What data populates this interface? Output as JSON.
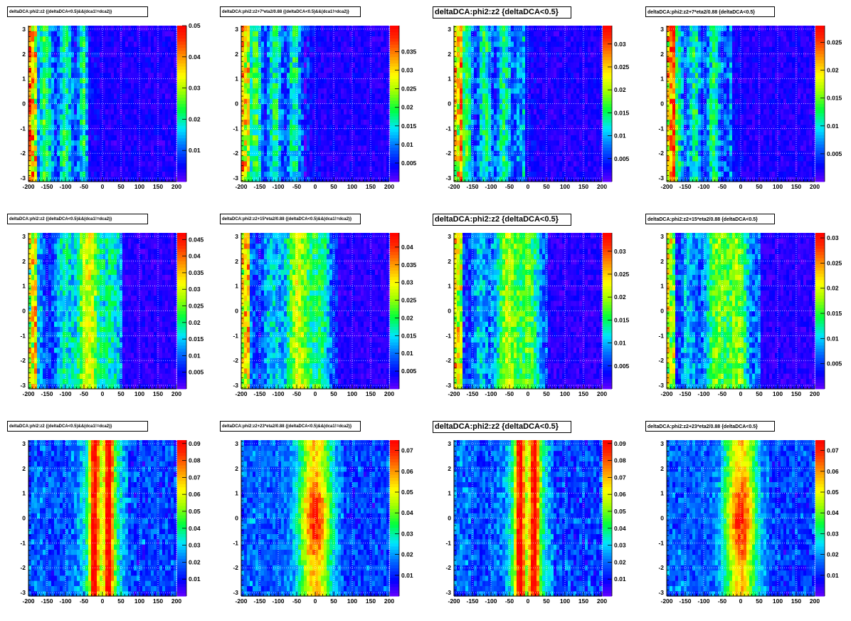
{
  "figure": {
    "layout": "3 rows x 4 columns",
    "colormap": "rainbow (purple-blue-cyan-green-yellow-orange-red)",
    "grid": true
  },
  "chart_data": [
    {
      "type": "heatmap",
      "title": "deltaDCA:phi2:z2 {(deltaDCA<0.5)&&(dca1!=dca2)}",
      "x_ticks": [
        "-200",
        "-150",
        "-100",
        "-50",
        "0",
        "50",
        "100",
        "150",
        "200"
      ],
      "y_ticks": [
        "3",
        "2",
        "1",
        "0",
        "-1",
        "-2",
        "-3"
      ],
      "xlim": [
        -200,
        200
      ],
      "ylim": [
        -3.14,
        3.14
      ],
      "z_ticks": [
        "0.05",
        "0.04",
        "0.03",
        "0.02",
        "0.01"
      ],
      "zmax": 0.05,
      "pattern": "offset_neg",
      "band_right": -35,
      "base": 0.005,
      "hot_left_edge": true
    },
    {
      "type": "heatmap",
      "title": "deltaDCA:phi2:z2+7*eta2/0.88 {(deltaDCA<0.5)&&(dca1!=dca2)}",
      "x_ticks": [
        "-200",
        "-150",
        "-100",
        "-50",
        "0",
        "50",
        "100",
        "150",
        "200"
      ],
      "y_ticks": [
        "3",
        "2",
        "1",
        "0",
        "-1",
        "-2",
        "-3"
      ],
      "xlim": [
        -200,
        200
      ],
      "ylim": [
        -3.14,
        3.14
      ],
      "z_ticks": [
        "0.035",
        "0.03",
        "0.025",
        "0.02",
        "0.015",
        "0.01",
        "0.005"
      ],
      "zmax": 0.042,
      "pattern": "offset_neg",
      "band_right": -15,
      "base": 0.004,
      "hot_left_edge": true
    },
    {
      "type": "heatmap",
      "title": "deltaDCA:phi2:z2 {deltaDCA<0.5}",
      "x_ticks": [
        "-200",
        "-150",
        "-100",
        "-50",
        "0",
        "50",
        "100",
        "150",
        "200"
      ],
      "y_ticks": [
        "3",
        "2",
        "1",
        "0",
        "-1",
        "-2",
        "-3"
      ],
      "xlim": [
        -200,
        200
      ],
      "ylim": [
        -3.14,
        3.14
      ],
      "z_ticks": [
        "0.03",
        "0.025",
        "0.02",
        "0.015",
        "0.01",
        "0.005"
      ],
      "zmax": 0.034,
      "pattern": "offset_neg",
      "band_right": -5,
      "base": 0.001,
      "hot_left_edge": true
    },
    {
      "type": "heatmap",
      "title": "deltaDCA:phi2:z2+7*eta2/0.88 {deltaDCA<0.5}",
      "x_ticks": [
        "-200",
        "-150",
        "-100",
        "-50",
        "0",
        "50",
        "100",
        "150",
        "200"
      ],
      "y_ticks": [
        "3",
        "2",
        "1",
        "0",
        "-1",
        "-2",
        "-3"
      ],
      "xlim": [
        -200,
        200
      ],
      "ylim": [
        -3.14,
        3.14
      ],
      "z_ticks": [
        "0.025",
        "0.02",
        "0.015",
        "0.01",
        "0.005"
      ],
      "zmax": 0.028,
      "pattern": "offset_neg",
      "band_right": -25,
      "base": 0.001,
      "hot_left_edge": true
    },
    {
      "type": "heatmap",
      "title": "deltaDCA:phi2:z2 {(deltaDCA<0.5)&&(dca1!=dca2)}",
      "x_ticks": [
        "-200",
        "-150",
        "-100",
        "-50",
        "0",
        "50",
        "100",
        "150",
        "200"
      ],
      "y_ticks": [
        "3",
        "2",
        "1",
        "0",
        "-1",
        "-2",
        "-3"
      ],
      "xlim": [
        -200,
        200
      ],
      "ylim": [
        -3.14,
        3.14
      ],
      "z_ticks": [
        "0.045",
        "0.04",
        "0.035",
        "0.03",
        "0.025",
        "0.02",
        "0.015",
        "0.01",
        "0.005"
      ],
      "zmax": 0.047,
      "pattern": "broad",
      "band_right": 55,
      "base": 0.002,
      "hot_left_edge": true
    },
    {
      "type": "heatmap",
      "title": "deltaDCA:phi2:z2+15*eta2/0.88 {(deltaDCA<0.5)&&(dca1!=dca2)}",
      "x_ticks": [
        "-200",
        "-150",
        "-100",
        "-50",
        "0",
        "50",
        "100",
        "150",
        "200"
      ],
      "y_ticks": [
        "3",
        "2",
        "1",
        "0",
        "-1",
        "-2",
        "-3"
      ],
      "xlim": [
        -200,
        200
      ],
      "ylim": [
        -3.14,
        3.14
      ],
      "z_ticks": [
        "0.04",
        "0.035",
        "0.03",
        "0.025",
        "0.02",
        "0.015",
        "0.01",
        "0.005"
      ],
      "zmax": 0.044,
      "pattern": "broad",
      "band_right": 65,
      "base": 0.004,
      "hot_left_edge": true
    },
    {
      "type": "heatmap",
      "title": "deltaDCA:phi2:z2 {deltaDCA<0.5}",
      "x_ticks": [
        "-200",
        "-150",
        "-100",
        "-50",
        "0",
        "50",
        "100",
        "150",
        "200"
      ],
      "y_ticks": [
        "3",
        "2",
        "1",
        "0",
        "-1",
        "-2",
        "-3"
      ],
      "xlim": [
        -200,
        200
      ],
      "ylim": [
        -3.14,
        3.14
      ],
      "z_ticks": [
        "0.03",
        "0.025",
        "0.02",
        "0.015",
        "0.01",
        "0.005"
      ],
      "zmax": 0.034,
      "pattern": "broad",
      "band_right": 55,
      "base": 0.001,
      "hot_left_edge": true
    },
    {
      "type": "heatmap",
      "title": "deltaDCA:phi2:z2+15*eta2/0.88 {deltaDCA<0.5}",
      "x_ticks": [
        "-200",
        "-150",
        "-100",
        "-50",
        "0",
        "50",
        "100",
        "150",
        "200"
      ],
      "y_ticks": [
        "3",
        "2",
        "1",
        "0",
        "-1",
        "-2",
        "-3"
      ],
      "xlim": [
        -200,
        200
      ],
      "ylim": [
        -3.14,
        3.14
      ],
      "z_ticks": [
        "0.03",
        "0.025",
        "0.02",
        "0.015",
        "0.01",
        "0.005"
      ],
      "zmax": 0.031,
      "pattern": "broad",
      "band_right": 55,
      "base": 0.001,
      "hot_left_edge": true
    },
    {
      "type": "heatmap",
      "title": "deltaDCA:phi2:z2 {(deltaDCA<0.5)&&(dca1!=dca2)}",
      "x_ticks": [
        "-200",
        "-150",
        "-100",
        "-50",
        "0",
        "50",
        "100",
        "150",
        "200"
      ],
      "y_ticks": [
        "3",
        "2",
        "1",
        "0",
        "-1",
        "-2",
        "-3"
      ],
      "xlim": [
        -200,
        200
      ],
      "ylim": [
        -3.14,
        3.14
      ],
      "z_ticks": [
        "0.09",
        "0.08",
        "0.07",
        "0.06",
        "0.05",
        "0.04",
        "0.03",
        "0.02",
        "0.01"
      ],
      "zmax": 0.092,
      "pattern": "double",
      "band_right": 70,
      "base": 0.012,
      "hot_left_edge": false
    },
    {
      "type": "heatmap",
      "title": "deltaDCA:phi2:z2+23*eta2/0.88 {(deltaDCA<0.5)&&(dca1!=dca2)}",
      "x_ticks": [
        "-200",
        "-150",
        "-100",
        "-50",
        "0",
        "50",
        "100",
        "150",
        "200"
      ],
      "y_ticks": [
        "3",
        "2",
        "1",
        "0",
        "-1",
        "-2",
        "-3"
      ],
      "xlim": [
        -200,
        200
      ],
      "ylim": [
        -3.14,
        3.14
      ],
      "z_ticks": [
        "0.07",
        "0.06",
        "0.05",
        "0.04",
        "0.03",
        "0.02",
        "0.01"
      ],
      "zmax": 0.075,
      "pattern": "single",
      "band_right": 80,
      "base": 0.012,
      "hot_left_edge": false
    },
    {
      "type": "heatmap",
      "title": "deltaDCA:phi2:z2 {deltaDCA<0.5}",
      "x_ticks": [
        "-200",
        "-150",
        "-100",
        "-50",
        "0",
        "50",
        "100",
        "150",
        "200"
      ],
      "y_ticks": [
        "3",
        "2",
        "1",
        "0",
        "-1",
        "-2",
        "-3"
      ],
      "xlim": [
        -200,
        200
      ],
      "ylim": [
        -3.14,
        3.14
      ],
      "z_ticks": [
        "0.09",
        "0.08",
        "0.07",
        "0.06",
        "0.05",
        "0.04",
        "0.03",
        "0.02",
        "0.01"
      ],
      "zmax": 0.092,
      "pattern": "double",
      "band_right": 70,
      "base": 0.008,
      "hot_left_edge": false
    },
    {
      "type": "heatmap",
      "title": "deltaDCA:phi2:z2+23*eta2/0.88 {deltaDCA<0.5}",
      "x_ticks": [
        "-200",
        "-150",
        "-100",
        "-50",
        "0",
        "50",
        "100",
        "150",
        "200"
      ],
      "y_ticks": [
        "3",
        "2",
        "1",
        "0",
        "-1",
        "-2",
        "-3"
      ],
      "xlim": [
        -200,
        200
      ],
      "ylim": [
        -3.14,
        3.14
      ],
      "z_ticks": [
        "0.07",
        "0.06",
        "0.05",
        "0.04",
        "0.03",
        "0.02",
        "0.01"
      ],
      "zmax": 0.075,
      "pattern": "single",
      "band_right": 80,
      "base": 0.008,
      "hot_left_edge": false
    }
  ]
}
